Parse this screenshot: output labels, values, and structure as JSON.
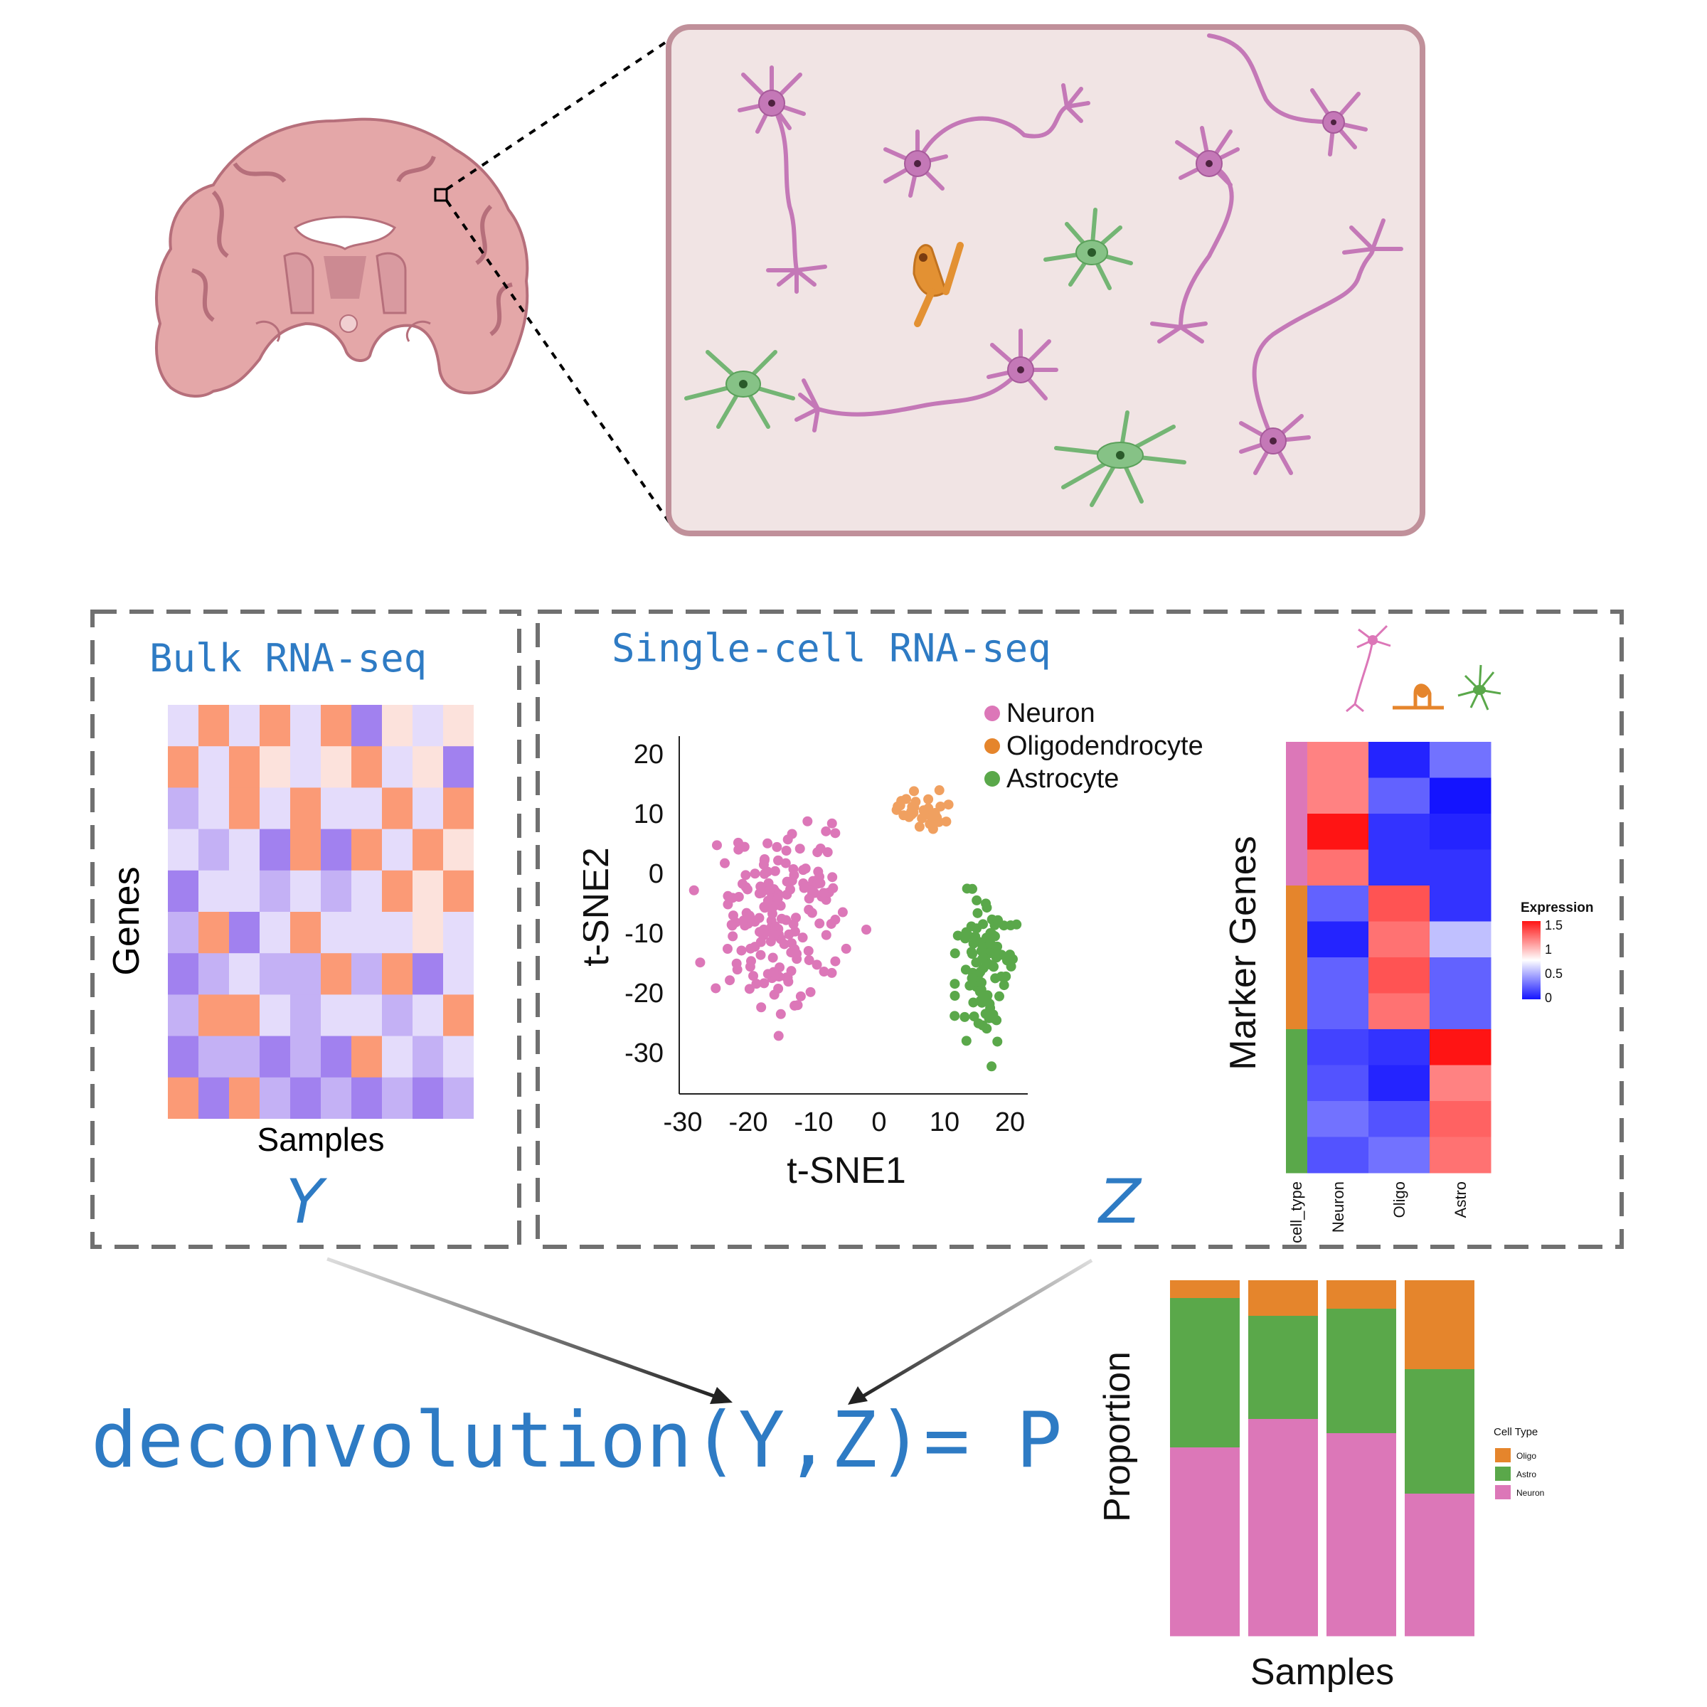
{
  "bulk": {
    "title": "Bulk RNA-seq",
    "xlabel": "Samples",
    "ylabel": "Genes",
    "symbol": "Y",
    "heatmap": [
      [
        "#e4dcfb",
        "#fb9a76",
        "#e4dcfb",
        "#fb9a76",
        "#e4dcfb",
        "#fb9a76",
        "#a181ef",
        "#fce2dc",
        "#e4dcfb",
        "#fce2dc"
      ],
      [
        "#fb9a76",
        "#e4dcfb",
        "#fb9a76",
        "#fce2dc",
        "#e4dcfb",
        "#fce2dc",
        "#fb9a76",
        "#e4dcfb",
        "#fce2dc",
        "#a181ef"
      ],
      [
        "#c4b1f5",
        "#e4dcfb",
        "#fb9a76",
        "#e4dcfb",
        "#fb9a76",
        "#e4dcfb",
        "#e4dcfb",
        "#fb9a76",
        "#e4dcfb",
        "#fb9a76"
      ],
      [
        "#e4dcfb",
        "#c4b1f5",
        "#e4dcfb",
        "#a181ef",
        "#fb9a76",
        "#a181ef",
        "#fb9a76",
        "#e4dcfb",
        "#fb9a76",
        "#fce2dc"
      ],
      [
        "#a181ef",
        "#e4dcfb",
        "#e4dcfb",
        "#c4b1f5",
        "#e4dcfb",
        "#c4b1f5",
        "#e4dcfb",
        "#fb9a76",
        "#fce2dc",
        "#fb9a76"
      ],
      [
        "#c4b1f5",
        "#fb9a76",
        "#a181ef",
        "#e4dcfb",
        "#fb9a76",
        "#e4dcfb",
        "#e4dcfb",
        "#e4dcfb",
        "#fce2dc",
        "#e4dcfb"
      ],
      [
        "#a181ef",
        "#c4b1f5",
        "#e4dcfb",
        "#c4b1f5",
        "#c4b1f5",
        "#fb9a76",
        "#c4b1f5",
        "#fb9a76",
        "#a181ef",
        "#e4dcfb"
      ],
      [
        "#c4b1f5",
        "#fb9a76",
        "#fb9a76",
        "#e4dcfb",
        "#c4b1f5",
        "#e4dcfb",
        "#e4dcfb",
        "#c4b1f5",
        "#e4dcfb",
        "#fb9a76"
      ],
      [
        "#a181ef",
        "#c4b1f5",
        "#c4b1f5",
        "#a181ef",
        "#c4b1f5",
        "#a181ef",
        "#fb9a76",
        "#e4dcfb",
        "#c4b1f5",
        "#e4dcfb"
      ],
      [
        "#fb9a76",
        "#a181ef",
        "#fb9a76",
        "#c4b1f5",
        "#a181ef",
        "#c4b1f5",
        "#a181ef",
        "#c4b1f5",
        "#a181ef",
        "#c4b1f5"
      ]
    ]
  },
  "single_cell": {
    "title": "Single-cell RNA-seq",
    "symbol": "Z"
  },
  "equation": "deconvolution(Y,Z)= P",
  "colors": {
    "neuron": "#dc77b8",
    "oligo": "#e5852c",
    "astro": "#5aa84a",
    "accent": "#2E7BC4"
  },
  "chart_data": [
    {
      "type": "scatter",
      "xlabel": "t-SNE1",
      "ylabel": "t-SNE2",
      "xticks": [
        "-30",
        "-20",
        "-10",
        "0",
        "10",
        "20"
      ],
      "yticks": [
        "20",
        "10",
        "0",
        "-10",
        "-20",
        "-30"
      ],
      "xlim": [
        -30,
        22
      ],
      "ylim": [
        -37,
        23
      ],
      "legend_position": "top-right",
      "series": [
        {
          "name": "Neuron",
          "color": "#dc77b8",
          "cluster": {
            "cx": -14,
            "cy": -7,
            "sx": 6.5,
            "sy": 9,
            "n": 175
          }
        },
        {
          "name": "Oligodendrocyte",
          "color": "#f0a060",
          "cluster": {
            "cx": 7,
            "cy": 10,
            "sx": 3,
            "sy": 2.2,
            "n": 32
          }
        },
        {
          "name": "Astrocyte",
          "color": "#5aa84a",
          "cluster": {
            "cx": 16,
            "cy": -15,
            "sx": 3.2,
            "sy": 8,
            "n": 95
          }
        }
      ]
    },
    {
      "type": "heatmap",
      "ylabel": "Marker Genes",
      "columns": [
        "cell_type",
        "Neuron",
        "Oligo",
        "Astro"
      ],
      "legend_title": "Expression",
      "legend_ticks": [
        "1.5",
        "1",
        "0.5",
        "0"
      ],
      "row_groups": [
        "neuron",
        "neuron",
        "neuron",
        "neuron",
        "oligo",
        "oligo",
        "oligo",
        "oligo",
        "astro",
        "astro",
        "astro",
        "astro"
      ],
      "values": [
        [
          1.15,
          0.05,
          0.3
        ],
        [
          1.15,
          0.25,
          0.0
        ],
        [
          1.5,
          0.1,
          0.05
        ],
        [
          1.2,
          0.1,
          0.1
        ],
        [
          0.25,
          1.3,
          0.1
        ],
        [
          0.05,
          1.2,
          0.55
        ],
        [
          0.25,
          1.3,
          0.25
        ],
        [
          0.25,
          1.2,
          0.25
        ],
        [
          0.15,
          0.1,
          1.5
        ],
        [
          0.2,
          0.05,
          1.15
        ],
        [
          0.3,
          0.2,
          1.25
        ],
        [
          0.2,
          0.3,
          1.2
        ]
      ]
    },
    {
      "type": "bar",
      "stacked": true,
      "xlabel": "Samples",
      "ylabel": "Proportion",
      "legend_title": "Cell Type",
      "series": [
        {
          "name": "Oligo",
          "color": "#e5852c",
          "values": [
            0.05,
            0.1,
            0.08,
            0.25
          ]
        },
        {
          "name": "Astro",
          "color": "#5aa84a",
          "values": [
            0.42,
            0.29,
            0.35,
            0.35
          ]
        },
        {
          "name": "Neuron",
          "color": "#dc77b8",
          "values": [
            0.53,
            0.61,
            0.57,
            0.4
          ]
        }
      ]
    }
  ]
}
